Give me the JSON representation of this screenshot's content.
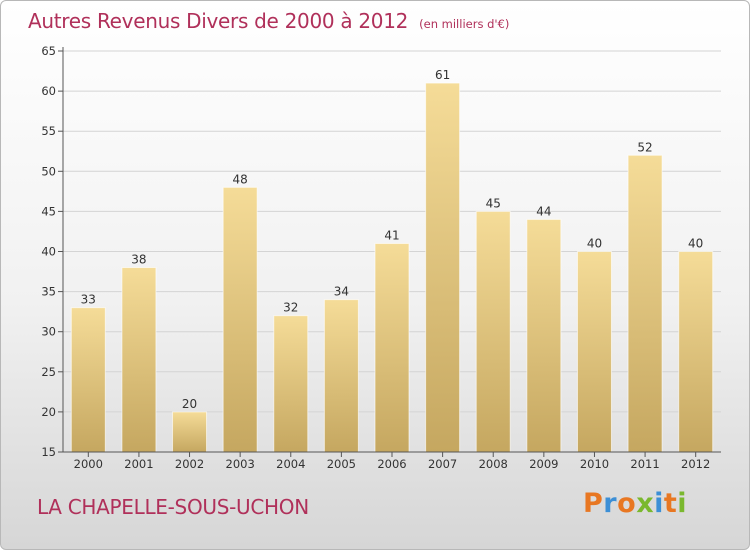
{
  "header": {
    "title": "Autres Revenus Divers de 2000 à 2012",
    "unit": "(en milliers d'€)"
  },
  "footer": {
    "place": "LA CHAPELLE-SOUS-UCHON"
  },
  "logo": {
    "letters": [
      "P",
      "r",
      "o",
      "x",
      "i",
      "t",
      "i"
    ],
    "colors": [
      "#e87722",
      "#3c8fd6",
      "#e87722",
      "#7ab82e",
      "#3c8fd6",
      "#e87722",
      "#7ab82e"
    ]
  },
  "colors": {
    "bar_top": "#f5dc98",
    "bar_bottom": "#c5a760",
    "grid": "#d4d4d4",
    "axis": "#555555",
    "text": "#333333"
  },
  "chart_data": {
    "type": "bar",
    "title": "Autres Revenus Divers de 2000 à 2012",
    "xlabel": "",
    "ylabel": "",
    "categories": [
      "2000",
      "2001",
      "2002",
      "2003",
      "2004",
      "2005",
      "2006",
      "2007",
      "2008",
      "2009",
      "2010",
      "2011",
      "2012"
    ],
    "values": [
      33,
      38,
      20,
      48,
      32,
      34,
      41,
      61,
      45,
      44,
      40,
      52,
      40
    ],
    "ylim": [
      15,
      65
    ],
    "yticks": [
      15,
      20,
      25,
      30,
      35,
      40,
      45,
      50,
      55,
      60,
      65
    ],
    "grid": true,
    "show_data_labels": true
  }
}
